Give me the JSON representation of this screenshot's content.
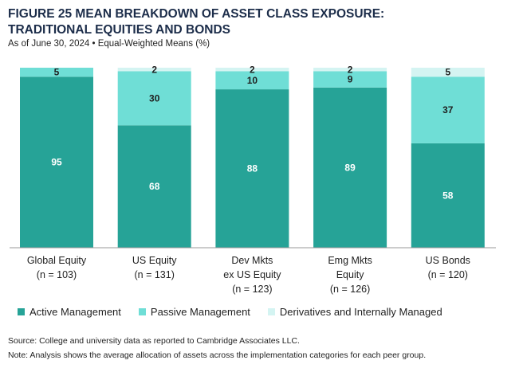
{
  "title_line1": "FIGURE 25   MEAN BREAKDOWN OF ASSET CLASS EXPOSURE:",
  "title_line2": "TRADITIONAL EQUITIES AND BONDS",
  "subtitle": "As of June 30, 2024 • Equal-Weighted Means (%)",
  "source": "Source: College and university data as reported to Cambridge Associates LLC.",
  "note": "Note: Analysis shows the average allocation of assets across the implementation categories for each peer group.",
  "colors": {
    "active": "#26a397",
    "passive": "#6fded6",
    "derivatives": "#d4f4f2"
  },
  "chart_data": {
    "type": "bar",
    "stacked": true,
    "categories": [
      [
        "Global Equity",
        "(n = 103)"
      ],
      [
        "US Equity",
        "(n = 131)"
      ],
      [
        "Dev Mkts",
        "ex US Equity",
        "(n = 123)"
      ],
      [
        "Emg Mkts",
        "Equity",
        "(n = 126)"
      ],
      [
        "US Bonds",
        "(n = 120)"
      ]
    ],
    "series": [
      {
        "name": "Active Management",
        "values": [
          95,
          68,
          88,
          89,
          58
        ]
      },
      {
        "name": "Passive Management",
        "values": [
          5,
          30,
          10,
          9,
          37
        ]
      },
      {
        "name": "Derivatives and Internally Managed",
        "values": [
          0,
          2,
          2,
          2,
          5
        ]
      }
    ],
    "ylim": [
      0,
      100
    ],
    "grid": false,
    "legend_position": "bottom"
  }
}
